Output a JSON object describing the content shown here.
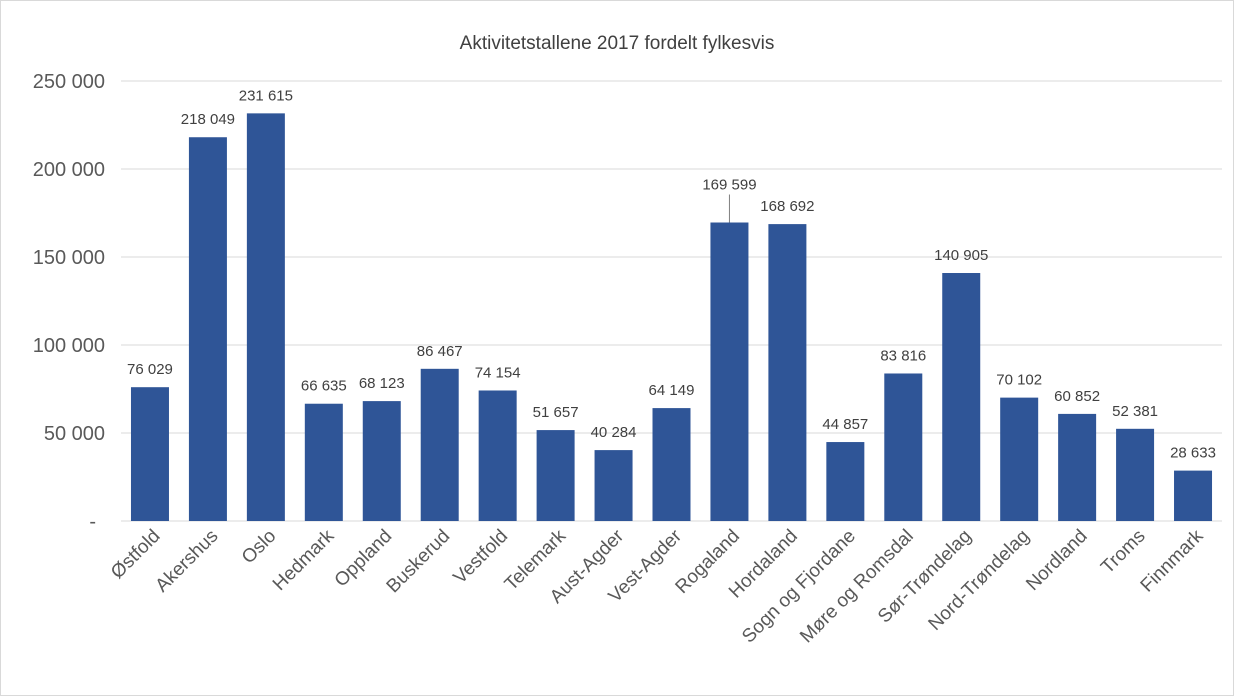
{
  "chart_data": {
    "type": "bar",
    "title": "Aktivitetstallene 2017 fordelt fylkesvis",
    "xlabel": "",
    "ylabel": "",
    "ylim": [
      0,
      250000
    ],
    "y_ticks": [
      {
        "value": 0,
        "label": "-"
      },
      {
        "value": 50000,
        "label": "50 000"
      },
      {
        "value": 100000,
        "label": "100 000"
      },
      {
        "value": 150000,
        "label": "150 000"
      },
      {
        "value": 200000,
        "label": "200 000"
      },
      {
        "value": 250000,
        "label": "250 000"
      }
    ],
    "grid": true,
    "legend": "none",
    "bar_color": "#2F5597",
    "categories": [
      "Østfold",
      "Akershus",
      "Oslo",
      "Hedmark",
      "Oppland",
      "Buskerud",
      "Vestfold",
      "Telemark",
      "Aust-Agder",
      "Vest-Agder",
      "Rogaland",
      "Hordaland",
      "Sogn og Fjordane",
      "Møre og Romsdal",
      "Sør-Trøndelag",
      "Nord-Trøndelag",
      "Nordland",
      "Troms",
      "Finnmark"
    ],
    "values": [
      76029,
      218049,
      231615,
      66635,
      68123,
      86467,
      74154,
      51657,
      40284,
      64149,
      169599,
      168692,
      44857,
      83816,
      140905,
      70102,
      60852,
      52381,
      28633
    ],
    "data_labels": [
      "76 029",
      "218 049",
      "231 615",
      "66 635",
      "68 123",
      "86 467",
      "74 154",
      "51 657",
      "40 284",
      "64 149",
      "169 599",
      "168 692",
      "44 857",
      "83 816",
      "140 905",
      "70 102",
      "60 852",
      "52 381",
      "28 633"
    ]
  }
}
